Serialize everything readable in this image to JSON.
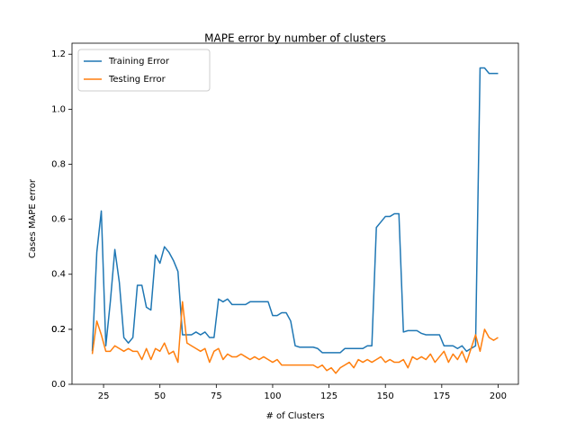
{
  "chart_data": {
    "type": "line",
    "title": "MAPE error by number of clusters",
    "xlabel": "# of Clusters",
    "ylabel": "Cases MAPE error",
    "x": [
      20,
      22,
      24,
      26,
      28,
      30,
      32,
      34,
      36,
      38,
      40,
      42,
      44,
      46,
      48,
      50,
      52,
      54,
      56,
      58,
      60,
      62,
      64,
      66,
      68,
      70,
      72,
      74,
      76,
      78,
      80,
      82,
      84,
      86,
      88,
      90,
      92,
      94,
      96,
      98,
      100,
      102,
      104,
      106,
      108,
      110,
      112,
      114,
      116,
      118,
      120,
      122,
      124,
      126,
      128,
      130,
      132,
      134,
      136,
      138,
      140,
      142,
      144,
      146,
      148,
      150,
      152,
      154,
      156,
      158,
      160,
      162,
      164,
      166,
      168,
      170,
      172,
      174,
      176,
      178,
      180,
      182,
      184,
      186,
      188,
      190,
      192,
      194,
      196,
      198,
      200
    ],
    "series": [
      {
        "name": "Training Error",
        "color": "#1f77b4",
        "values": [
          0.12,
          0.48,
          0.63,
          0.14,
          0.3,
          0.49,
          0.37,
          0.17,
          0.15,
          0.17,
          0.36,
          0.36,
          0.28,
          0.27,
          0.47,
          0.44,
          0.5,
          0.48,
          0.45,
          0.41,
          0.18,
          0.18,
          0.18,
          0.19,
          0.18,
          0.19,
          0.17,
          0.17,
          0.31,
          0.3,
          0.31,
          0.29,
          0.29,
          0.29,
          0.29,
          0.3,
          0.3,
          0.3,
          0.3,
          0.3,
          0.25,
          0.25,
          0.26,
          0.26,
          0.23,
          0.14,
          0.135,
          0.135,
          0.135,
          0.135,
          0.13,
          0.115,
          0.115,
          0.115,
          0.115,
          0.115,
          0.13,
          0.13,
          0.13,
          0.13,
          0.13,
          0.14,
          0.14,
          0.57,
          0.59,
          0.61,
          0.61,
          0.62,
          0.62,
          0.19,
          0.195,
          0.195,
          0.195,
          0.185,
          0.18,
          0.18,
          0.18,
          0.18,
          0.14,
          0.14,
          0.14,
          0.13,
          0.14,
          0.12,
          0.13,
          0.14,
          1.15,
          1.15,
          1.13,
          1.13,
          1.13
        ]
      },
      {
        "name": "Testing Error",
        "color": "#ff7f0e",
        "values": [
          0.11,
          0.23,
          0.18,
          0.12,
          0.12,
          0.14,
          0.13,
          0.12,
          0.13,
          0.12,
          0.12,
          0.09,
          0.13,
          0.09,
          0.13,
          0.12,
          0.15,
          0.11,
          0.12,
          0.08,
          0.3,
          0.15,
          0.14,
          0.13,
          0.12,
          0.13,
          0.08,
          0.12,
          0.13,
          0.09,
          0.11,
          0.1,
          0.1,
          0.11,
          0.1,
          0.09,
          0.1,
          0.09,
          0.1,
          0.09,
          0.08,
          0.09,
          0.07,
          0.07,
          0.07,
          0.07,
          0.07,
          0.07,
          0.07,
          0.07,
          0.06,
          0.07,
          0.05,
          0.06,
          0.04,
          0.06,
          0.07,
          0.08,
          0.06,
          0.09,
          0.08,
          0.09,
          0.08,
          0.09,
          0.1,
          0.08,
          0.09,
          0.08,
          0.08,
          0.09,
          0.06,
          0.1,
          0.09,
          0.1,
          0.09,
          0.11,
          0.08,
          0.1,
          0.12,
          0.08,
          0.11,
          0.09,
          0.12,
          0.08,
          0.13,
          0.18,
          0.12,
          0.2,
          0.17,
          0.16,
          0.17
        ]
      }
    ],
    "xlim": [
      11,
      209
    ],
    "ylim": [
      0,
      1.24
    ],
    "xticks": [
      25,
      50,
      75,
      100,
      125,
      150,
      175,
      200
    ],
    "yticks": [
      {
        "value": 0,
        "label": "0.0"
      },
      0.2,
      0.4,
      0.6,
      0.8,
      {
        "value": 1,
        "label": "1.0"
      },
      0.2,
      1.2
    ],
    "legend": "upper left"
  }
}
